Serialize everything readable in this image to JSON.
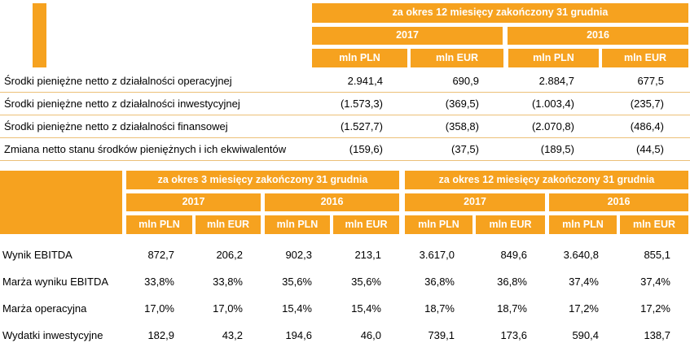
{
  "colors": {
    "accent": "#F6A21F",
    "header_text": "#FFFFFF",
    "body_text": "#000000",
    "row_line": "#ECC078"
  },
  "cash_flow_table": {
    "period_header": "za okres 12 miesięcy zakończony 31 grudnia",
    "years": [
      "2017",
      "2016"
    ],
    "units": [
      "mln PLN",
      "mln EUR",
      "mln PLN",
      "mln EUR"
    ],
    "rows": [
      {
        "label": "Środki pieniężne netto z działalności operacyjnej",
        "values": [
          "2.941,4",
          "690,9",
          "2.884,7",
          "677,5"
        ]
      },
      {
        "label": "Środki pieniężne netto z działalności inwestycyjnej",
        "values": [
          "(1.573,3)",
          "(369,5)",
          "(1.003,4)",
          "(235,7)"
        ]
      },
      {
        "label": "Środki pieniężne netto z działalności finansowej",
        "values": [
          "(1.527,7)",
          "(358,8)",
          "(2.070,8)",
          "(486,4)"
        ]
      },
      {
        "label": "Zmiana netto stanu środków pieniężnych i ich ekwiwalentów",
        "values": [
          "(159,6)",
          "(37,5)",
          "(189,5)",
          "(44,5)"
        ]
      }
    ]
  },
  "results_table": {
    "period_headers": [
      "za okres 3 miesięcy zakończony 31 grudnia",
      "za okres 12 miesięcy zakończony 31 grudnia"
    ],
    "years": [
      "2017",
      "2016",
      "2017",
      "2016"
    ],
    "units": [
      "mln PLN",
      "mln EUR",
      "mln PLN",
      "mln EUR",
      "mln PLN",
      "mln EUR",
      "mln PLN",
      "mln EUR"
    ],
    "rows": [
      {
        "label": "Wynik EBITDA",
        "values": [
          "872,7",
          "206,2",
          "902,3",
          "213,1",
          "3.617,0",
          "849,6",
          "3.640,8",
          "855,1"
        ]
      },
      {
        "label": "Marża wyniku EBITDA",
        "values": [
          "33,8%",
          "33,8%",
          "35,6%",
          "35,6%",
          "36,8%",
          "36,8%",
          "37,4%",
          "37,4%"
        ]
      },
      {
        "label": "Marża operacyjna",
        "values": [
          "17,0%",
          "17,0%",
          "15,4%",
          "15,4%",
          "18,7%",
          "18,7%",
          "17,2%",
          "17,2%"
        ]
      },
      {
        "label": "Wydatki inwestycyjne",
        "values": [
          "182,9",
          "43,2",
          "194,6",
          "46,0",
          "739,1",
          "173,6",
          "590,4",
          "138,7"
        ]
      }
    ]
  }
}
